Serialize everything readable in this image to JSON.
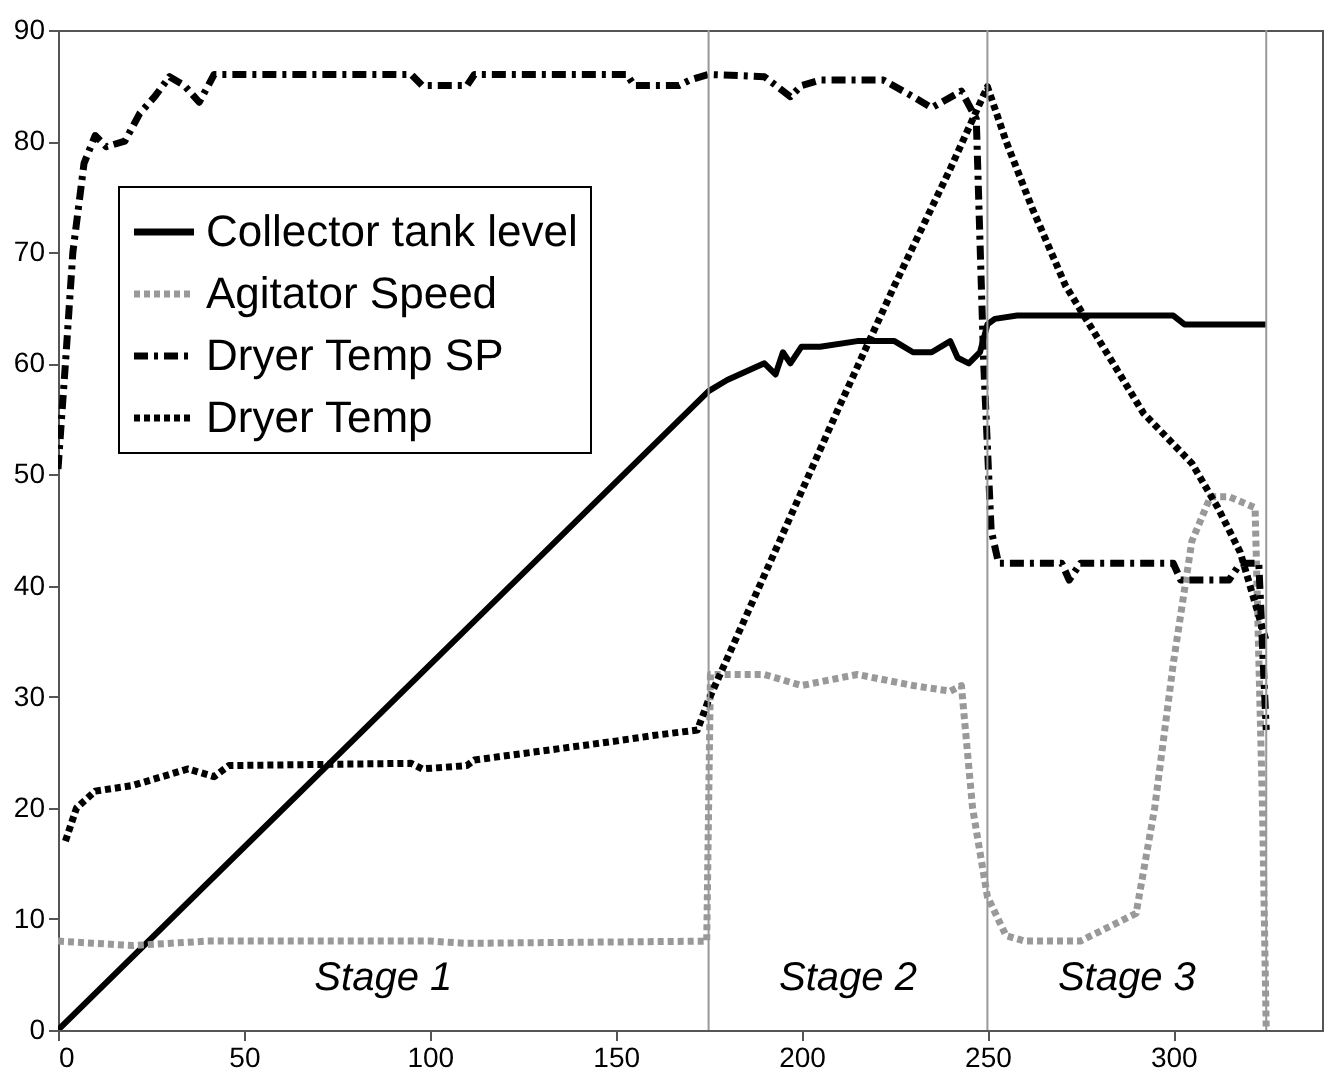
{
  "chart_data": {
    "type": "line",
    "xlim": [
      0,
      340
    ],
    "xticks": [
      0,
      50,
      100,
      150,
      200,
      250,
      300
    ],
    "ylim": [
      0,
      90
    ],
    "yticks": [
      0,
      10,
      20,
      30,
      40,
      50,
      60,
      70,
      80,
      90
    ],
    "grid": false,
    "legend": "top left",
    "marker": "none",
    "series": [
      {
        "name": "Collector tank level",
        "color": "#000000",
        "line_style": "solid",
        "x": [
          0,
          175,
          180,
          190,
          193,
          195,
          197,
          200,
          205,
          215,
          225,
          230,
          235,
          240,
          242,
          245,
          248,
          250,
          252,
          258,
          270,
          300,
          303,
          325
        ],
        "values": [
          0,
          57.5,
          58.5,
          60,
          59,
          61,
          60,
          61.5,
          61.5,
          62,
          62,
          61,
          61,
          62,
          60.5,
          60,
          61,
          63.5,
          64,
          64.3,
          64.3,
          64.3,
          63.5,
          63.5
        ]
      },
      {
        "name": "Agitator Speed",
        "color": "#999999",
        "line_style": "dotted",
        "x": [
          0,
          20,
          40,
          100,
          110,
          174.5,
          175.5,
          190,
          200,
          215,
          230,
          240,
          243,
          246,
          250,
          255,
          260,
          275,
          290,
          295,
          300,
          305,
          310,
          315,
          322,
          324,
          325
        ],
        "values": [
          8,
          7.6,
          8,
          8,
          7.8,
          8,
          32,
          32,
          31,
          32,
          31,
          30.5,
          31,
          20,
          12,
          8.5,
          8,
          8,
          10.5,
          20,
          33,
          44,
          48,
          48,
          47,
          20,
          0
        ]
      },
      {
        "name": "Dryer Temp SP",
        "color": "#000000",
        "line_style": "dashed",
        "x": [
          0,
          2,
          4,
          7,
          10,
          13,
          18,
          22,
          26,
          30,
          34,
          38,
          42,
          95,
          98,
          110,
          112,
          153,
          155,
          167,
          170,
          175,
          190,
          197,
          200,
          205,
          215,
          222,
          230,
          235,
          243,
          247,
          249,
          251,
          253,
          270,
          272,
          275,
          300,
          302,
          315,
          318,
          323,
          325
        ],
        "values": [
          50.5,
          60,
          70,
          78,
          80.5,
          79.5,
          80,
          82.5,
          84,
          85.8,
          85,
          83.5,
          86,
          86,
          85,
          85,
          86,
          86,
          85,
          85,
          85.5,
          86,
          85.8,
          84,
          85,
          85.5,
          85.5,
          85.5,
          84,
          83,
          84.5,
          82,
          60,
          45,
          42,
          42,
          40.5,
          42,
          42,
          40.5,
          40.5,
          42,
          42,
          27
        ]
      },
      {
        "name": "Dryer Temp",
        "color": "#000000",
        "line_style": "dotted",
        "x": [
          2,
          5,
          10,
          20,
          30,
          35,
          42,
          46,
          95,
          98,
          110,
          112,
          150,
          160,
          172,
          175,
          192.5,
          210,
          225,
          240,
          250,
          255,
          262,
          271,
          282,
          292,
          305,
          312,
          318,
          325
        ],
        "values": [
          17,
          20,
          21.5,
          22,
          23,
          23.5,
          22.8,
          23.8,
          24,
          23.5,
          23.8,
          24.3,
          26,
          26.5,
          27,
          29.7,
          42.8,
          56,
          67,
          77.5,
          84.9,
          80,
          74,
          67,
          61,
          55.5,
          51,
          47,
          43,
          35
        ]
      }
    ],
    "ref_lines": [
      {
        "axis": "x",
        "value": 175,
        "color": "#999999"
      },
      {
        "axis": "x",
        "value": 250,
        "color": "#999999"
      },
      {
        "axis": "x",
        "value": 325,
        "color": "#999999"
      }
    ],
    "annotations": [
      "Stage 1",
      "Stage 2",
      "Stage 3"
    ]
  }
}
